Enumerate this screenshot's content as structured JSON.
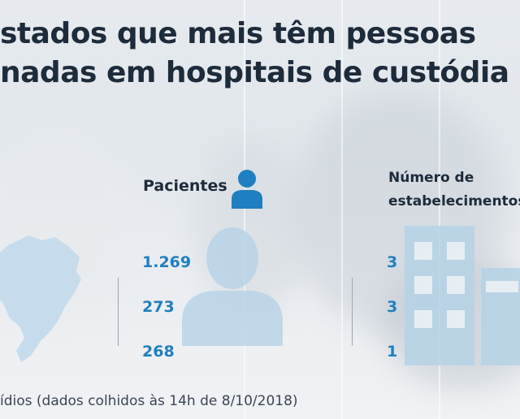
{
  "title": {
    "line1": "stados que mais têm pessoas",
    "line2": "nadas em hospitais de custódia"
  },
  "headers": {
    "patients": "Pacientes",
    "establishments_line1": "Número de",
    "establishments_line2": "estabelecimentos"
  },
  "rows": [
    {
      "patients": "1.269",
      "establishments": "3"
    },
    {
      "patients": "273",
      "establishments": "3"
    },
    {
      "patients": "268",
      "establishments": "1"
    }
  ],
  "footer": "ídios (dados colhidos às 14h de 8/10/2018)",
  "colors": {
    "title": "#1d2b3a",
    "value": "#1f7fc0",
    "icon_light": "#b5d2e6",
    "icon_dark": "#1f7fc0"
  },
  "icons": [
    "brazil-map-icon",
    "person-icon",
    "building-icon"
  ]
}
